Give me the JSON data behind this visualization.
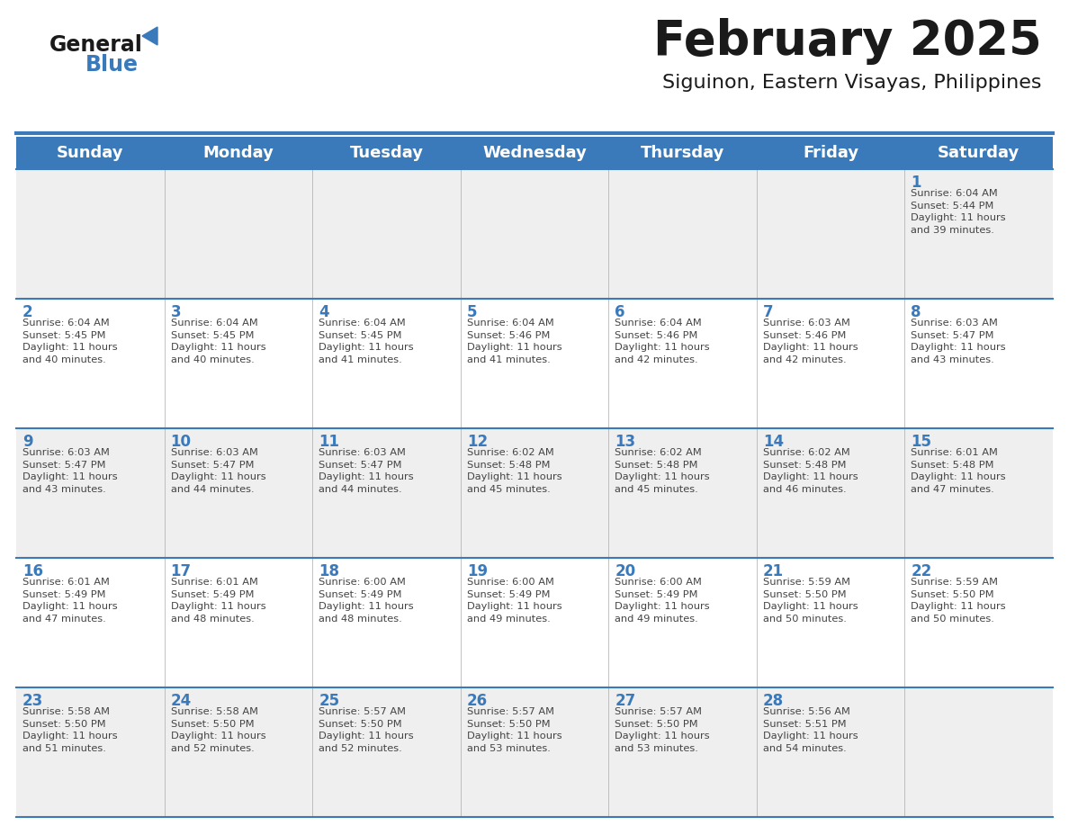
{
  "title": "February 2025",
  "subtitle": "Siguinon, Eastern Visayas, Philippines",
  "header_bg_color": "#3a7aba",
  "header_text_color": "#ffffff",
  "cell_bg_odd": "#efefef",
  "cell_bg_even": "#ffffff",
  "day_number_color": "#3a7aba",
  "text_color": "#444444",
  "border_color": "#3a7aba",
  "grid_line_color": "#aaaaaa",
  "days_of_week": [
    "Sunday",
    "Monday",
    "Tuesday",
    "Wednesday",
    "Thursday",
    "Friday",
    "Saturday"
  ],
  "calendar_data": [
    [
      null,
      null,
      null,
      null,
      null,
      null,
      {
        "day": "1",
        "sunrise": "6:04 AM",
        "sunset": "5:44 PM",
        "daylight": "11 hours\nand 39 minutes."
      }
    ],
    [
      {
        "day": "2",
        "sunrise": "6:04 AM",
        "sunset": "5:45 PM",
        "daylight": "11 hours\nand 40 minutes."
      },
      {
        "day": "3",
        "sunrise": "6:04 AM",
        "sunset": "5:45 PM",
        "daylight": "11 hours\nand 40 minutes."
      },
      {
        "day": "4",
        "sunrise": "6:04 AM",
        "sunset": "5:45 PM",
        "daylight": "11 hours\nand 41 minutes."
      },
      {
        "day": "5",
        "sunrise": "6:04 AM",
        "sunset": "5:46 PM",
        "daylight": "11 hours\nand 41 minutes."
      },
      {
        "day": "6",
        "sunrise": "6:04 AM",
        "sunset": "5:46 PM",
        "daylight": "11 hours\nand 42 minutes."
      },
      {
        "day": "7",
        "sunrise": "6:03 AM",
        "sunset": "5:46 PM",
        "daylight": "11 hours\nand 42 minutes."
      },
      {
        "day": "8",
        "sunrise": "6:03 AM",
        "sunset": "5:47 PM",
        "daylight": "11 hours\nand 43 minutes."
      }
    ],
    [
      {
        "day": "9",
        "sunrise": "6:03 AM",
        "sunset": "5:47 PM",
        "daylight": "11 hours\nand 43 minutes."
      },
      {
        "day": "10",
        "sunrise": "6:03 AM",
        "sunset": "5:47 PM",
        "daylight": "11 hours\nand 44 minutes."
      },
      {
        "day": "11",
        "sunrise": "6:03 AM",
        "sunset": "5:47 PM",
        "daylight": "11 hours\nand 44 minutes."
      },
      {
        "day": "12",
        "sunrise": "6:02 AM",
        "sunset": "5:48 PM",
        "daylight": "11 hours\nand 45 minutes."
      },
      {
        "day": "13",
        "sunrise": "6:02 AM",
        "sunset": "5:48 PM",
        "daylight": "11 hours\nand 45 minutes."
      },
      {
        "day": "14",
        "sunrise": "6:02 AM",
        "sunset": "5:48 PM",
        "daylight": "11 hours\nand 46 minutes."
      },
      {
        "day": "15",
        "sunrise": "6:01 AM",
        "sunset": "5:48 PM",
        "daylight": "11 hours\nand 47 minutes."
      }
    ],
    [
      {
        "day": "16",
        "sunrise": "6:01 AM",
        "sunset": "5:49 PM",
        "daylight": "11 hours\nand 47 minutes."
      },
      {
        "day": "17",
        "sunrise": "6:01 AM",
        "sunset": "5:49 PM",
        "daylight": "11 hours\nand 48 minutes."
      },
      {
        "day": "18",
        "sunrise": "6:00 AM",
        "sunset": "5:49 PM",
        "daylight": "11 hours\nand 48 minutes."
      },
      {
        "day": "19",
        "sunrise": "6:00 AM",
        "sunset": "5:49 PM",
        "daylight": "11 hours\nand 49 minutes."
      },
      {
        "day": "20",
        "sunrise": "6:00 AM",
        "sunset": "5:49 PM",
        "daylight": "11 hours\nand 49 minutes."
      },
      {
        "day": "21",
        "sunrise": "5:59 AM",
        "sunset": "5:50 PM",
        "daylight": "11 hours\nand 50 minutes."
      },
      {
        "day": "22",
        "sunrise": "5:59 AM",
        "sunset": "5:50 PM",
        "daylight": "11 hours\nand 50 minutes."
      }
    ],
    [
      {
        "day": "23",
        "sunrise": "5:58 AM",
        "sunset": "5:50 PM",
        "daylight": "11 hours\nand 51 minutes."
      },
      {
        "day": "24",
        "sunrise": "5:58 AM",
        "sunset": "5:50 PM",
        "daylight": "11 hours\nand 52 minutes."
      },
      {
        "day": "25",
        "sunrise": "5:57 AM",
        "sunset": "5:50 PM",
        "daylight": "11 hours\nand 52 minutes."
      },
      {
        "day": "26",
        "sunrise": "5:57 AM",
        "sunset": "5:50 PM",
        "daylight": "11 hours\nand 53 minutes."
      },
      {
        "day": "27",
        "sunrise": "5:57 AM",
        "sunset": "5:50 PM",
        "daylight": "11 hours\nand 53 minutes."
      },
      {
        "day": "28",
        "sunrise": "5:56 AM",
        "sunset": "5:51 PM",
        "daylight": "11 hours\nand 54 minutes."
      },
      null
    ]
  ],
  "logo_text1": "General",
  "logo_text2": "Blue",
  "logo_text1_color": "#1a1a1a",
  "logo_text2_color": "#3a7aba",
  "logo_triangle_color": "#3a7aba",
  "fig_width": 11.88,
  "fig_height": 9.18,
  "dpi": 100
}
